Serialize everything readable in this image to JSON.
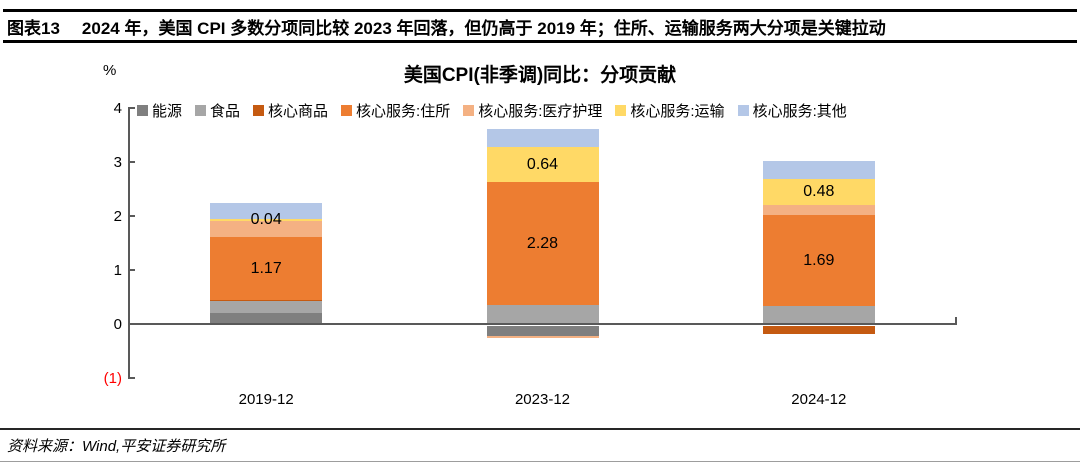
{
  "header": {
    "tag": "图表13",
    "title": "2024 年，美国 CPI 多数分项同比较 2023 年回落，但仍高于 2019 年；住所、运输服务两大分项是关键拉动"
  },
  "footer": {
    "source": "资料来源：Wind,平安证券研究所"
  },
  "chart_data": {
    "type": "bar",
    "stacked": true,
    "title": "美国CPI(非季调)同比：分项贡献",
    "ylabel": "%",
    "ylim": [
      -1,
      4
    ],
    "grid": false,
    "legend_position": "top",
    "yticks": [
      {
        "value": 4,
        "label": "4"
      },
      {
        "value": 3,
        "label": "3"
      },
      {
        "value": 2,
        "label": "2"
      },
      {
        "value": 1,
        "label": "1"
      },
      {
        "value": 0,
        "label": "0"
      },
      {
        "value": -1,
        "label": "(1)",
        "negative": true
      }
    ],
    "negative_tick_color": "#ff0000",
    "categories": [
      "2019-12",
      "2023-12",
      "2024-12"
    ],
    "series": [
      {
        "name": "能源",
        "color": "#7f7f7f",
        "values": [
          0.2,
          -0.18,
          0.0
        ],
        "show_labels": false,
        "labels": [
          null,
          null,
          null
        ]
      },
      {
        "name": "食品",
        "color": "#a6a6a6",
        "values": [
          0.22,
          0.35,
          0.33
        ],
        "show_labels": false,
        "labels": [
          null,
          null,
          null
        ]
      },
      {
        "name": "核心商品",
        "color": "#c55a11",
        "values": [
          0.02,
          0.0,
          -0.15
        ],
        "show_labels": false,
        "labels": [
          null,
          null,
          null
        ]
      },
      {
        "name": "核心服务:住所",
        "color": "#ed7d31",
        "values": [
          1.17,
          2.28,
          1.69
        ],
        "show_labels": true,
        "labels": [
          "1.17",
          "2.28",
          "1.69"
        ]
      },
      {
        "name": "核心服务:医疗护理",
        "color": "#f4b183",
        "values": [
          0.3,
          -0.05,
          0.19
        ],
        "show_labels": false,
        "labels": [
          null,
          null,
          null
        ]
      },
      {
        "name": "核心服务:运输",
        "color": "#ffd966",
        "values": [
          0.04,
          0.64,
          0.48
        ],
        "show_labels": true,
        "labels": [
          "0.04",
          "0.64",
          "0.48"
        ]
      },
      {
        "name": "核心服务:其他",
        "color": "#b4c7e7",
        "values": [
          0.3,
          0.35,
          0.32
        ],
        "show_labels": false,
        "labels": [
          null,
          null,
          null
        ]
      }
    ]
  }
}
